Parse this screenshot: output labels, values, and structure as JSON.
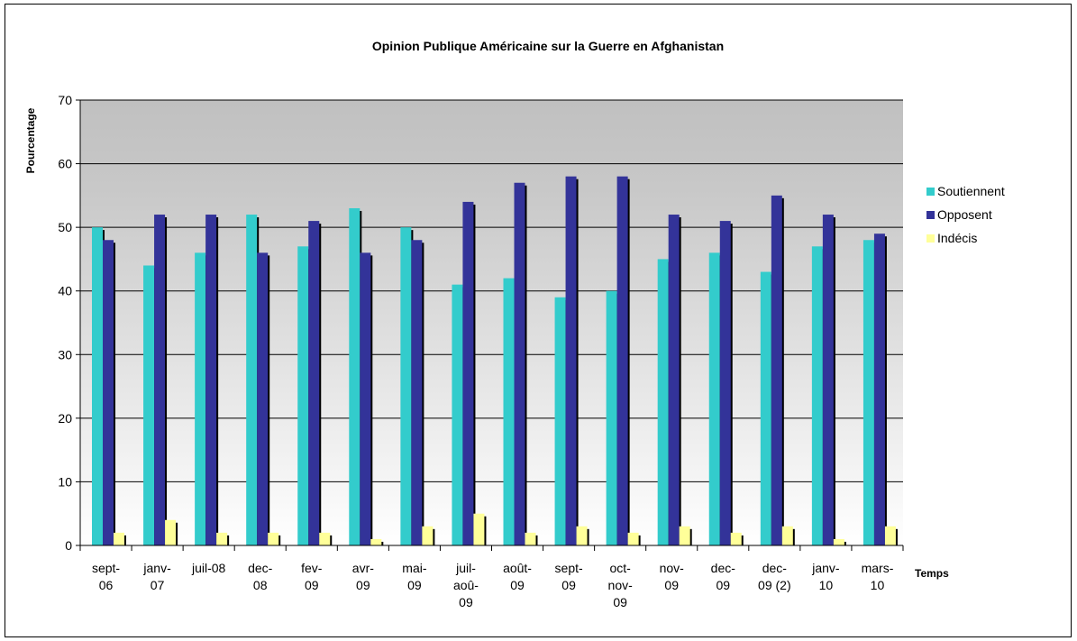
{
  "chart_data": {
    "type": "bar",
    "title": "Opinion Publique Américaine sur la Guerre en Afghanistan",
    "xlabel": "Temps",
    "ylabel": "Pourcentage",
    "ylim": [
      0,
      70
    ],
    "yticks": [
      0,
      10,
      20,
      30,
      40,
      50,
      60,
      70
    ],
    "grid": true,
    "legend_position": "right",
    "categories": [
      [
        "sept-",
        "06"
      ],
      [
        "janv-",
        "07"
      ],
      [
        "juil-08"
      ],
      [
        "dec-",
        "08"
      ],
      [
        "fev-",
        "09"
      ],
      [
        "avr-",
        "09"
      ],
      [
        "mai-",
        "09"
      ],
      [
        "juil-",
        "aoû-",
        "09"
      ],
      [
        "août-",
        "09"
      ],
      [
        "sept-",
        "09"
      ],
      [
        "oct-",
        "nov-",
        "09"
      ],
      [
        "nov-",
        "09"
      ],
      [
        "dec-",
        "09"
      ],
      [
        "dec-",
        "09 (2)"
      ],
      [
        "janv-",
        "10"
      ],
      [
        "mars-",
        "10"
      ]
    ],
    "series": [
      {
        "name": "Soutiennent",
        "color": "#33cccc",
        "values": [
          50,
          44,
          46,
          52,
          47,
          53,
          50,
          41,
          42,
          39,
          40,
          45,
          46,
          43,
          47,
          48
        ]
      },
      {
        "name": "Opposent",
        "color": "#333399",
        "values": [
          48,
          52,
          52,
          46,
          51,
          46,
          48,
          54,
          57,
          58,
          58,
          52,
          51,
          55,
          52,
          49
        ]
      },
      {
        "name": "Indécis",
        "color": "#ffff99",
        "values": [
          2,
          4,
          2,
          2,
          2,
          1,
          3,
          5,
          2,
          3,
          2,
          3,
          2,
          3,
          1,
          3
        ]
      }
    ]
  }
}
